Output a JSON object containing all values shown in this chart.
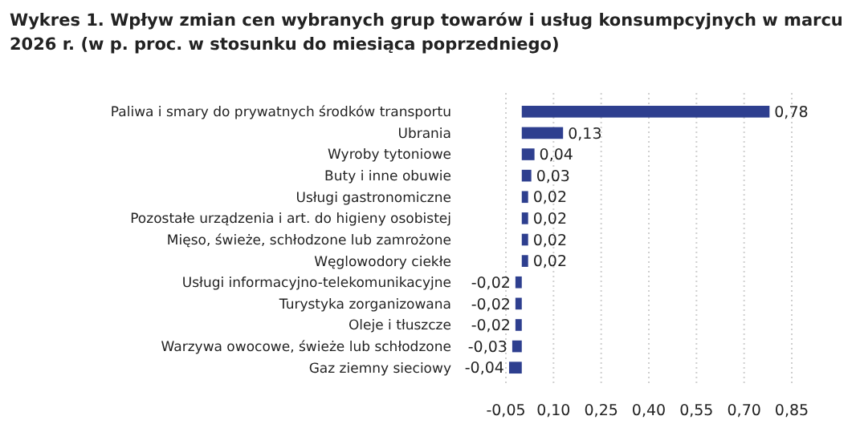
{
  "chart_data": {
    "type": "bar",
    "orientation": "horizontal",
    "title": "Wykres 1. Wpływ zmian cen wybranych grup towarów i usług konsumpcyjnych w marcu 2026 r. (w p. proc. w stosunku do miesiąca poprzedniego)",
    "categories": [
      "Paliwa i smary do prywatnych środków transportu",
      "Ubrania",
      "Wyroby tytoniowe",
      "Buty i inne obuwie",
      "Usługi gastronomiczne",
      "Pozostałe urządzenia i art. do higieny osobistej",
      "Mięso, świeże, schłodzone lub zamrożone",
      "Węglowodory ciekłe",
      "Usługi informacyjno-telekomunikacyjne",
      "Turystyka zorganizowana",
      "Oleje i tłuszcze",
      "Warzywa owocowe, świeże lub schłodzone",
      "Gaz ziemny sieciowy"
    ],
    "values": [
      0.78,
      0.13,
      0.04,
      0.03,
      0.02,
      0.02,
      0.02,
      0.02,
      -0.02,
      -0.02,
      -0.02,
      -0.03,
      -0.04
    ],
    "value_labels": [
      "0,78",
      "0,13",
      "0,04",
      "0,03",
      "0,02",
      "0,02",
      "0,02",
      "0,02",
      "-0,02",
      "-0,02",
      "-0,02",
      "-0,03",
      "-0,04"
    ],
    "color": "#2e3f8f",
    "xlim": [
      -0.05,
      0.85
    ],
    "xticks": [
      {
        "value": -0.05,
        "label": "-0,05"
      },
      {
        "value": 0.1,
        "label": "0,10"
      },
      {
        "value": 0.25,
        "label": "0,25"
      },
      {
        "value": 0.4,
        "label": "0,40"
      },
      {
        "value": 0.55,
        "label": "0,55"
      },
      {
        "value": 0.7,
        "label": "0,70"
      },
      {
        "value": 0.85,
        "label": "0,85"
      }
    ],
    "grid": "x"
  }
}
